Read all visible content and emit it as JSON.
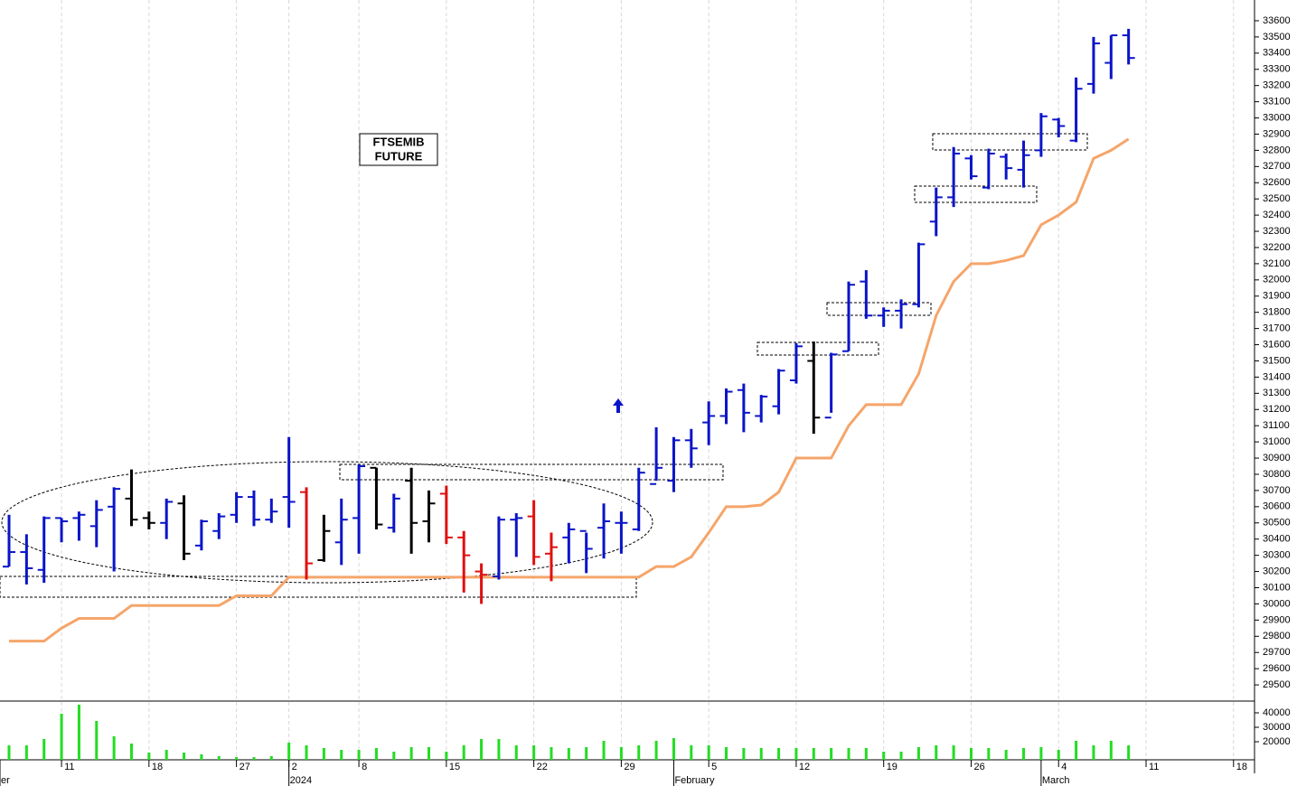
{
  "chart_data": [
    {
      "type": "ohlc",
      "annotation_lines": [
        "FTSEMIB",
        "FUTURE"
      ],
      "open": [
        30230,
        30320,
        30210,
        30530,
        30530,
        30480,
        30600,
        30650,
        30530,
        30500,
        30620,
        30360,
        30450,
        30550,
        30660,
        30520,
        30660,
        30690,
        30270,
        30380,
        30530,
        30840,
        30470,
        30760,
        30510,
        30680,
        30410,
        30200,
        30170,
        30520,
        30540,
        30310,
        30410,
        30450,
        30470,
        30500,
        30460,
        30740,
        30760,
        31010,
        31120,
        31160,
        31320,
        31160,
        31220,
        31380,
        31500,
        31150,
        31560,
        31990,
        31780,
        31810,
        31850,
        32360,
        32510,
        32750,
        32570,
        32760,
        32680,
        32800,
        32990,
        32860,
        33210,
        33340,
        33510
      ],
      "high": [
        30550,
        30430,
        30540,
        30530,
        30570,
        30640,
        30720,
        30830,
        30570,
        30650,
        30670,
        30520,
        30560,
        30690,
        30700,
        30650,
        31030,
        30720,
        30550,
        30650,
        30860,
        30840,
        30680,
        30840,
        30700,
        30730,
        30450,
        30250,
        30540,
        30560,
        30640,
        30440,
        30500,
        30440,
        30620,
        30570,
        30840,
        31090,
        31030,
        31080,
        31250,
        31330,
        31360,
        31290,
        31450,
        31610,
        31620,
        31550,
        31990,
        32060,
        31830,
        31880,
        32230,
        32570,
        32820,
        32770,
        32810,
        32780,
        32860,
        33030,
        33000,
        33250,
        33500,
        33510,
        33550
      ],
      "low": [
        30230,
        30120,
        30130,
        30380,
        30390,
        30350,
        30200,
        30480,
        30460,
        30400,
        30270,
        30330,
        30400,
        30500,
        30480,
        30500,
        30470,
        30150,
        30260,
        30240,
        30310,
        30460,
        30440,
        30310,
        30380,
        30370,
        30070,
        30000,
        30150,
        30290,
        30240,
        30140,
        30250,
        30190,
        30280,
        30310,
        30450,
        30760,
        30690,
        30840,
        30980,
        31110,
        31060,
        31120,
        31170,
        31360,
        31050,
        31180,
        31560,
        31760,
        31710,
        31700,
        31830,
        32270,
        32450,
        32620,
        32560,
        32620,
        32570,
        32760,
        32880,
        32850,
        33150,
        33240,
        33330
      ],
      "close": [
        30320,
        30220,
        30530,
        30510,
        30550,
        30580,
        30710,
        30520,
        30500,
        30630,
        30310,
        30510,
        30540,
        30660,
        30520,
        30570,
        30630,
        30250,
        30450,
        30520,
        30850,
        30490,
        30650,
        30500,
        30620,
        30410,
        30300,
        30180,
        30520,
        30530,
        30290,
        30350,
        30460,
        30340,
        30510,
        30500,
        30810,
        30840,
        31010,
        30960,
        31160,
        31310,
        31180,
        31280,
        31440,
        31590,
        31150,
        31540,
        31970,
        31780,
        31810,
        31850,
        32220,
        32510,
        32780,
        32640,
        32780,
        32690,
        32770,
        33010,
        32950,
        33180,
        33460,
        33510,
        33370
      ],
      "bar_colors": [
        "#0a14c8",
        "#0a14c8",
        "#0a14c8",
        "#0a14c8",
        "#0a14c8",
        "#0a14c8",
        "#0a14c8",
        "#000000",
        "#000000",
        "#0a14c8",
        "#000000",
        "#0a14c8",
        "#0a14c8",
        "#0a14c8",
        "#0a14c8",
        "#0a14c8",
        "#0a14c8",
        "#e01010",
        "#000000",
        "#0a14c8",
        "#0a14c8",
        "#000000",
        "#0a14c8",
        "#000000",
        "#000000",
        "#e01010",
        "#e01010",
        "#e01010",
        "#0a14c8",
        "#0a14c8",
        "#e01010",
        "#e01010",
        "#0a14c8",
        "#0a14c8",
        "#0a14c8",
        "#0a14c8",
        "#0a14c8",
        "#0a14c8",
        "#0a14c8",
        "#0a14c8",
        "#0a14c8",
        "#0a14c8",
        "#0a14c8",
        "#0a14c8",
        "#0a14c8",
        "#0a14c8",
        "#000000",
        "#0a14c8",
        "#0a14c8",
        "#0a14c8",
        "#0a14c8",
        "#0a14c8",
        "#0a14c8",
        "#0a14c8",
        "#0a14c8",
        "#0a14c8",
        "#0a14c8",
        "#0a14c8",
        "#0a14c8",
        "#0a14c8",
        "#0a14c8",
        "#0a14c8",
        "#0a14c8",
        "#0a14c8",
        "#0a14c8"
      ],
      "line": {
        "color": "#f5a56a",
        "values": [
          29770,
          29770,
          29770,
          29850,
          29910,
          29910,
          29910,
          29990,
          29990,
          29990,
          29990,
          29990,
          29990,
          30050,
          30050,
          30050,
          30165,
          30165,
          30165,
          30165,
          30165,
          30165,
          30165,
          30165,
          30165,
          30165,
          30165,
          30165,
          30165,
          30165,
          30165,
          30165,
          30165,
          30165,
          30165,
          30165,
          30165,
          30230,
          30230,
          30290,
          30440,
          30600,
          30600,
          30610,
          30690,
          30900,
          30900,
          30900,
          31100,
          31230,
          31230,
          31230,
          31420,
          31780,
          31990,
          32100,
          32100,
          32120,
          32150,
          32340,
          32400,
          32480,
          32750,
          32800,
          32870
        ]
      },
      "xlim": [
        -0.517,
        71.2
      ],
      "ylim": [
        29400,
        33728
      ],
      "yticks": [
        29500,
        29600,
        29700,
        29800,
        29900,
        30000,
        30100,
        30200,
        30300,
        30400,
        30500,
        30600,
        30700,
        30800,
        30900,
        31000,
        31100,
        31200,
        31300,
        31400,
        31500,
        31600,
        31700,
        31800,
        31900,
        32000,
        32100,
        32200,
        32300,
        32400,
        32500,
        32600,
        32700,
        32800,
        32900,
        33000,
        33100,
        33200,
        33300,
        33400,
        33500,
        33600
      ]
    },
    {
      "type": "bar",
      "values": [
        17500,
        17500,
        21875,
        39375,
        45625,
        34375,
        23750,
        18750,
        12500,
        14375,
        12500,
        11250,
        10000,
        9375,
        9375,
        10000,
        19375,
        17500,
        15625,
        14375,
        14375,
        15625,
        13125,
        16250,
        16250,
        13125,
        17500,
        21875,
        21875,
        17500,
        17500,
        16250,
        15625,
        16250,
        20625,
        16250,
        17500,
        20625,
        22500,
        17500,
        17500,
        16250,
        15625,
        15625,
        15625,
        15625,
        15625,
        15625,
        15625,
        15625,
        13125,
        13125,
        16250,
        17500,
        17500,
        15625,
        15625,
        14375,
        15625,
        16250,
        14375,
        20625,
        17500,
        20625,
        17500
      ],
      "color": "#22dd22",
      "ylim": [
        7500,
        48125
      ],
      "yticks": [
        20000,
        30000,
        40000
      ],
      "xticks": [
        {
          "value": 3,
          "label": "11"
        },
        {
          "value": 8,
          "label": "18"
        },
        {
          "value": 13,
          "label": "27"
        },
        {
          "value": 16,
          "label": "2"
        },
        {
          "value": 20,
          "label": "8"
        },
        {
          "value": 25,
          "label": "15"
        },
        {
          "value": 30,
          "label": "22"
        },
        {
          "value": 35,
          "label": "29"
        },
        {
          "value": 40,
          "label": "5"
        },
        {
          "value": 45,
          "label": "12"
        },
        {
          "value": 50,
          "label": "19"
        },
        {
          "value": 55,
          "label": "26"
        },
        {
          "value": 60,
          "label": "4"
        },
        {
          "value": 65,
          "label": "11"
        },
        {
          "value": 70,
          "label": "18"
        }
      ],
      "month_labels": [
        {
          "value": -0.517,
          "label": "er"
        },
        {
          "value": 16,
          "label": "2024"
        },
        {
          "value": 38,
          "label": "February"
        },
        {
          "value": 59,
          "label": "March"
        }
      ]
    }
  ]
}
